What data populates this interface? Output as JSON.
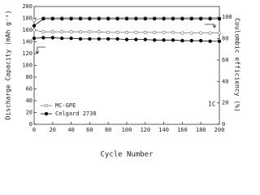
{
  "chart_data": {
    "type": "line",
    "xlabel": "Cycle Number",
    "ylabel": "Discharge Capacity (mAh g⁻¹)",
    "y2label": "Coulombic efficiency (%)",
    "annotation": "1C",
    "x": [
      0,
      10,
      20,
      30,
      40,
      50,
      60,
      70,
      80,
      90,
      100,
      110,
      120,
      130,
      140,
      150,
      160,
      170,
      180,
      190,
      200
    ],
    "xlim": [
      0,
      200
    ],
    "xticks": [
      0,
      20,
      40,
      60,
      80,
      100,
      120,
      140,
      160,
      180,
      200
    ],
    "ylim": [
      0,
      200
    ],
    "yticks": [
      0,
      20,
      40,
      60,
      80,
      100,
      120,
      140,
      160,
      180,
      200
    ],
    "y2lim": [
      0,
      110
    ],
    "y2ticks": [
      0,
      20,
      40,
      60,
      80,
      100
    ],
    "legend": "lower left",
    "series": [
      {
        "name": "MC-GPE",
        "color": "#777777",
        "marker": "open",
        "values": [
          160,
          157,
          157,
          157,
          157,
          157,
          157,
          157,
          156,
          156,
          156,
          156,
          156,
          156,
          156,
          156,
          155,
          155,
          155,
          155,
          155
        ],
        "efficiency": [
          97,
          99.5,
          99.5,
          99.5,
          99.5,
          99.5,
          99.5,
          99.5,
          99.5,
          99.5,
          99.5,
          99.5,
          99.5,
          99.5,
          99.5,
          99.5,
          99.5,
          99.5,
          99.5,
          99.5,
          99.5
        ]
      },
      {
        "name": "Celgard 2730",
        "color": "#000000",
        "marker": "filled",
        "values": [
          146,
          147,
          147,
          146,
          146,
          145,
          145,
          145,
          145,
          145,
          144,
          144,
          144,
          143,
          143,
          143,
          142,
          142,
          142,
          141,
          141
        ],
        "efficiency": [
          92,
          98.5,
          98.5,
          98.5,
          98.5,
          98.5,
          98.5,
          98.5,
          98.5,
          98.5,
          98.5,
          98.5,
          98.5,
          98.5,
          98.5,
          98.5,
          98.5,
          98.5,
          98.5,
          98.5,
          98.5
        ]
      }
    ]
  }
}
